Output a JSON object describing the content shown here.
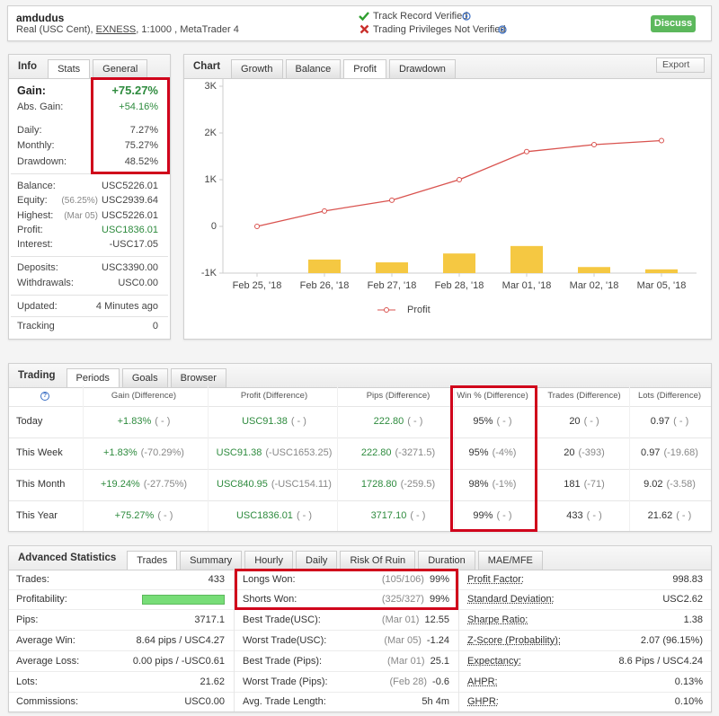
{
  "header": {
    "account": "amdudus",
    "details_prefix": "Real (USC Cent), ",
    "broker": "EXNESS",
    "details_suffix": ", 1:1000 , MetaTrader 4",
    "verified": "Track Record Verified",
    "not_verified": "Trading Privileges Not Verified",
    "button": "Discuss"
  },
  "info": {
    "tabs": [
      "Info",
      "Stats",
      "General"
    ],
    "rows": [
      {
        "label": "Gain:",
        "value": "+75.27%"
      },
      {
        "label": "Abs. Gain:",
        "value": "+54.16%"
      },
      {
        "label": "Daily:",
        "value": "7.27%"
      },
      {
        "label": "Monthly:",
        "value": "75.27%"
      },
      {
        "label": "Drawdown:",
        "value": "48.52%"
      },
      {
        "label": "Balance:",
        "value": "USC5226.01"
      },
      {
        "label": "Equity:",
        "note": "(56.25%)",
        "value": "USC2939.64"
      },
      {
        "label": "Highest:",
        "note": "(Mar 05)",
        "value": "USC5226.01"
      },
      {
        "label": "Profit:",
        "value": "USC1836.01"
      },
      {
        "label": "Interest:",
        "value": "-USC17.05"
      },
      {
        "label": "Deposits:",
        "value": "USC3390.00"
      },
      {
        "label": "Withdrawals:",
        "value": "USC0.00"
      },
      {
        "label": "Updated:",
        "value": "4 Minutes ago"
      },
      {
        "label": "Tracking",
        "value": "0"
      }
    ]
  },
  "chart_panel": {
    "tabs": [
      "Chart",
      "Growth",
      "Balance",
      "Profit",
      "Drawdown"
    ],
    "export": "Export"
  },
  "chart_data": {
    "type": "line",
    "categories": [
      "Feb 25, '18",
      "Feb 26, '18",
      "Feb 27, '18",
      "Feb 28, '18",
      "Mar 01, '18",
      "Mar 02, '18",
      "Mar 05, '18"
    ],
    "series": [
      {
        "name": "Profit",
        "type": "line",
        "color": "#d9534f",
        "values": [
          0,
          330,
          560,
          1000,
          1600,
          1750,
          1836.01
        ]
      },
      {
        "type": "bar",
        "color": "#f5c842",
        "values": [
          null,
          290,
          230,
          420,
          580,
          130,
          80
        ]
      }
    ],
    "ylim": [
      -1000,
      3000
    ],
    "yticks": [
      {
        "value": -1000,
        "label": "-1K"
      },
      0,
      {
        "value": 1000,
        "label": "1K"
      },
      {
        "value": 2000,
        "label": "2K"
      },
      {
        "value": 3000,
        "label": "3K"
      }
    ],
    "grid": false
  },
  "trading": {
    "tabs": [
      "Trading",
      "Periods",
      "Goals",
      "Browser"
    ],
    "columns": [
      "?",
      "Gain (Difference)",
      "Profit (Difference)",
      "Pips (Difference)",
      "Win % (Difference)",
      "Trades (Difference)",
      "Lots (Difference)"
    ],
    "rows": [
      {
        "label": "Today",
        "cells": [
          [
            "+1.83%",
            "( - )"
          ],
          [
            "USC91.38",
            "( - )"
          ],
          [
            "222.80",
            "( - )"
          ],
          [
            "95%",
            "( - )"
          ],
          [
            "20",
            "( - )"
          ],
          [
            "0.97",
            "( - )"
          ]
        ]
      },
      {
        "label": "This Week",
        "cells": [
          [
            "+1.83%",
            "(-70.29%)"
          ],
          [
            "USC91.38",
            "(-USC1653.25)"
          ],
          [
            "222.80",
            "(-3271.5)"
          ],
          [
            "95%",
            "(-4%)"
          ],
          [
            "20",
            "(-393)"
          ],
          [
            "0.97",
            "(-19.68)"
          ]
        ]
      },
      {
        "label": "This Month",
        "cells": [
          [
            "+19.24%",
            "(-27.75%)"
          ],
          [
            "USC840.95",
            "(-USC154.11)"
          ],
          [
            "1728.80",
            "(-259.5)"
          ],
          [
            "98%",
            "(-1%)"
          ],
          [
            "181",
            "(-71)"
          ],
          [
            "9.02",
            "(-3.58)"
          ]
        ]
      },
      {
        "label": "This Year",
        "cells": [
          [
            "+75.27%",
            "( - )"
          ],
          [
            "USC1836.01",
            "( - )"
          ],
          [
            "3717.10",
            "( - )"
          ],
          [
            "99%",
            "( - )"
          ],
          [
            "433",
            "( - )"
          ],
          [
            "21.62",
            "( - )"
          ]
        ]
      }
    ]
  },
  "advanced": {
    "tabs": [
      "Advanced Statistics",
      "Trades",
      "Summary",
      "Hourly",
      "Daily",
      "Risk Of Ruin",
      "Duration",
      "MAE/MFE"
    ],
    "columns": [
      [
        {
          "label": "Trades:",
          "value": "433"
        },
        {
          "label": "Profitability:"
        },
        {
          "label": "Pips:",
          "value": "3717.1"
        },
        {
          "label": "Average Win:",
          "value": "8.64 pips / USC4.27"
        },
        {
          "label": "Average Loss:",
          "value": "0.00 pips / -USC0.61"
        },
        {
          "label": "Lots:",
          "value": "21.62"
        },
        {
          "label": "Commissions:",
          "value": "USC0.00"
        }
      ],
      [
        {
          "label": "Longs Won:",
          "note": "(105/106)",
          "value": "99%"
        },
        {
          "label": "Shorts Won:",
          "note": "(325/327)",
          "value": "99%"
        },
        {
          "label": "Best Trade(USC):",
          "note": "(Mar 01)",
          "value": "12.55"
        },
        {
          "label": "Worst Trade(USC):",
          "note": "(Mar 05)",
          "value": "-1.24"
        },
        {
          "label": "Best Trade (Pips):",
          "note": "(Mar 01)",
          "value": "25.1"
        },
        {
          "label": "Worst Trade (Pips):",
          "note": "(Feb 28)",
          "value": "-0.6"
        },
        {
          "label": "Avg. Trade Length:",
          "value": "5h 4m"
        }
      ],
      [
        {
          "label": "Profit Factor:",
          "value": "998.83"
        },
        {
          "label": "Standard Deviation:",
          "value": "USC2.62"
        },
        {
          "label": "Sharpe Ratio:",
          "value": "1.38"
        },
        {
          "label": "Z-Score (Probability):",
          "value": "2.07 (96.15%)"
        },
        {
          "label": "Expectancy:",
          "value": "8.6 Pips / USC4.24"
        },
        {
          "label": "AHPR:",
          "value": "0.13%"
        },
        {
          "label": "GHPR:",
          "value": "0.10%"
        }
      ]
    ]
  }
}
